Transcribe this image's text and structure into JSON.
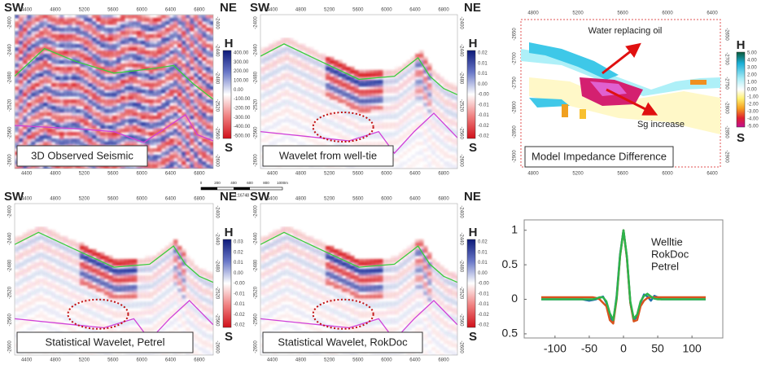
{
  "panels": [
    {
      "label": "3D Observed Seismic",
      "left_corner": "SW",
      "right_corner": "NE",
      "colorbar_top": "H",
      "colorbar_bottom": "S",
      "colorbar_ticks": [
        "400.00",
        "300.00",
        "200.00",
        "100.00",
        "0.00",
        "-100.00",
        "-200.00",
        "-300.00",
        "-400.00",
        "-500.00"
      ],
      "x_ticks": [
        "4400",
        "4800",
        "5200",
        "5600",
        "6000",
        "6400",
        "6800"
      ],
      "y_ticks": [
        "-2400",
        "-2440",
        "-2480",
        "-2520",
        "-2560",
        "-2600"
      ]
    },
    {
      "label": "Wavelet from well-tie",
      "left_corner": "SW",
      "right_corner": "NE",
      "colorbar_top": "H",
      "colorbar_bottom": "S",
      "colorbar_ticks": [
        "0.02",
        "0.01",
        "0.01",
        "0.00",
        "-0.00",
        "-0.01",
        "-0.01",
        "-0.02",
        "-0.02"
      ],
      "x_ticks": [
        "4400",
        "4800",
        "5200",
        "5600",
        "6000",
        "6400",
        "6800"
      ],
      "y_ticks": [
        "-2400",
        "-2440",
        "-2480",
        "-2520",
        "-2560",
        "-2600"
      ]
    },
    {
      "label": "Statistical Wavelet, Petrel",
      "left_corner": "SW",
      "right_corner": "NE",
      "colorbar_top": "H",
      "colorbar_bottom": "S",
      "colorbar_ticks": [
        "0.03",
        "0.02",
        "0.01",
        "0.00",
        "-0.00",
        "-0.01",
        "-0.01",
        "-0.02",
        "-0.02"
      ],
      "x_ticks": [
        "4400",
        "4800",
        "5200",
        "5600",
        "6000",
        "6400",
        "6800"
      ],
      "y_ticks": [
        "-2400",
        "-2440",
        "-2480",
        "-2520",
        "-2560",
        "-2600"
      ]
    },
    {
      "label": "Statistical Wavelet, RokDoc",
      "left_corner": "SW",
      "right_corner": "NE",
      "colorbar_top": "H",
      "colorbar_bottom": "S",
      "colorbar_ticks": [
        "0.02",
        "0.01",
        "0.01",
        "0.00",
        "-0.00",
        "-0.01",
        "-0.01",
        "-0.02",
        "-0.02"
      ],
      "x_ticks": [
        "4400",
        "4800",
        "5200",
        "5600",
        "6000",
        "6400",
        "6800"
      ],
      "y_ticks": [
        "-2400",
        "-2440",
        "-2480",
        "-2520",
        "-2560",
        "-2600"
      ]
    }
  ],
  "model_panel": {
    "label": "Model Impedance Difference",
    "colorbar_top": "H",
    "colorbar_bottom": "S",
    "annotations": [
      "Water replacing oil",
      "Sg increase"
    ],
    "colorbar_ticks": [
      "5.00",
      "4.00",
      "3.00",
      "2.00",
      "1.00",
      "0.00",
      "-1.00",
      "-2.00",
      "-3.00",
      "-4.00",
      "-5.00"
    ],
    "x_ticks": [
      "4800",
      "5200",
      "5600",
      "6000",
      "6400"
    ],
    "y_ticks": [
      "-2650",
      "-2700",
      "-2750",
      "-2800",
      "-2850",
      "-2900"
    ]
  },
  "scale_bar": {
    "labels": [
      "0",
      "200",
      "400",
      "600",
      "800",
      "1000m"
    ],
    "ratio": "1:16748"
  },
  "chart_data": {
    "type": "line",
    "x": [
      -120,
      -115,
      -110,
      -105,
      -100,
      -95,
      -90,
      -85,
      -80,
      -75,
      -70,
      -65,
      -60,
      -55,
      -50,
      -45,
      -40,
      -35,
      -30,
      -25,
      -20,
      -15,
      -10,
      -5,
      0,
      5,
      10,
      15,
      20,
      25,
      30,
      35,
      40,
      45,
      50,
      55,
      60,
      65,
      70,
      75,
      80,
      85,
      90,
      95,
      100,
      105,
      110,
      115,
      120
    ],
    "series": [
      {
        "name": "Welltie",
        "color": "#1f6fae",
        "values": [
          0,
          0,
          0,
          0,
          0,
          0,
          0,
          0,
          0,
          0,
          0,
          0,
          0,
          -0.01,
          -0.02,
          -0.01,
          0,
          0.02,
          0.04,
          -0.05,
          -0.25,
          -0.33,
          0.05,
          0.65,
          1.0,
          0.6,
          -0.05,
          -0.3,
          -0.25,
          -0.05,
          0.07,
          0.04,
          -0.02,
          0.05,
          0.03,
          0,
          0,
          0,
          0,
          0,
          0,
          0,
          0,
          0,
          0,
          0,
          0,
          0,
          0
        ]
      },
      {
        "name": "RokDoc",
        "color": "#d9531e",
        "values": [
          0.03,
          0.03,
          0.03,
          0.03,
          0.03,
          0.03,
          0.03,
          0.03,
          0.03,
          0.03,
          0.03,
          0.03,
          0.03,
          0.03,
          0.03,
          0.03,
          0.02,
          0,
          -0.05,
          -0.1,
          -0.3,
          -0.35,
          0,
          0.62,
          1.0,
          0.6,
          -0.05,
          -0.32,
          -0.3,
          -0.1,
          -0.02,
          0.02,
          0.03,
          0.03,
          0.03,
          0.03,
          0.03,
          0.03,
          0.03,
          0.03,
          0.03,
          0.03,
          0.03,
          0.03,
          0.03,
          0.03,
          0.03,
          0.03,
          0.03
        ]
      },
      {
        "name": "Petrel",
        "color": "#2db34a",
        "values": [
          0,
          0,
          0,
          0,
          0,
          0,
          0,
          0,
          0,
          0,
          0,
          0,
          0,
          0,
          0,
          0,
          0.01,
          0.03,
          0.03,
          -0.03,
          -0.2,
          -0.3,
          0.02,
          0.63,
          1.0,
          0.62,
          -0.03,
          -0.28,
          -0.22,
          -0.03,
          0.05,
          0.08,
          0.04,
          0.01,
          0,
          0,
          0,
          0,
          0,
          0,
          0,
          0,
          0,
          0,
          0,
          0,
          0,
          0,
          0
        ]
      }
    ],
    "xlim": [
      -145,
      145
    ],
    "ylim": [
      -0.56,
      1.15
    ],
    "xticks": [
      -100,
      -50,
      0,
      50,
      100
    ],
    "yticks": [
      1,
      0.5,
      0,
      {
        "value": -0.5,
        "label": "0.5"
      }
    ]
  }
}
